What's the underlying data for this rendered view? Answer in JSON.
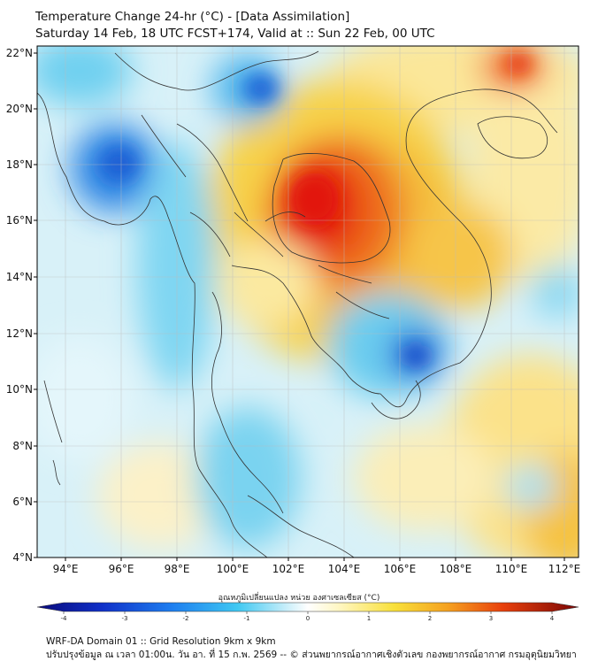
{
  "header": {
    "title_line1": "Temperature Change 24-hr (°C) - [Data Assimilation]",
    "title_line2": "Saturday 14 Feb, 18 UTC FCST+174, Valid at :: Sun 22 Feb, 00 UTC"
  },
  "map": {
    "lat_ticks": [
      "22°N",
      "20°N",
      "18°N",
      "16°N",
      "14°N",
      "12°N",
      "10°N",
      "8°N",
      "6°N",
      "4°N"
    ],
    "lon_ticks": [
      "94°E",
      "96°E",
      "98°E",
      "100°E",
      "102°E",
      "104°E",
      "106°E",
      "108°E",
      "110°E",
      "112°E"
    ],
    "warm_color": "#e8100c",
    "cool_color": "#1565e0"
  },
  "colorbar": {
    "title": "อุณหภูมิเปลี่ยนแปลง หน่วย องศาเซลเซียส (°C)",
    "ticks": [
      "-4",
      "-3",
      "-2",
      "-1",
      "0",
      "1",
      "2",
      "3",
      "4"
    ]
  },
  "footer": {
    "line1": "WRF-DA Domain 01 :: Grid Resolution 9km x 9km",
    "line2": "ปรับปรุงข้อมูล ณ เวลา 01:00น. วัน อา. ที่ 15 ก.พ. 2569 -- © ส่วนพยากรณ์อากาศเชิงตัวเลข กองพยากรณ์อากาศ กรมอุตุนิยมวิทยา"
  }
}
